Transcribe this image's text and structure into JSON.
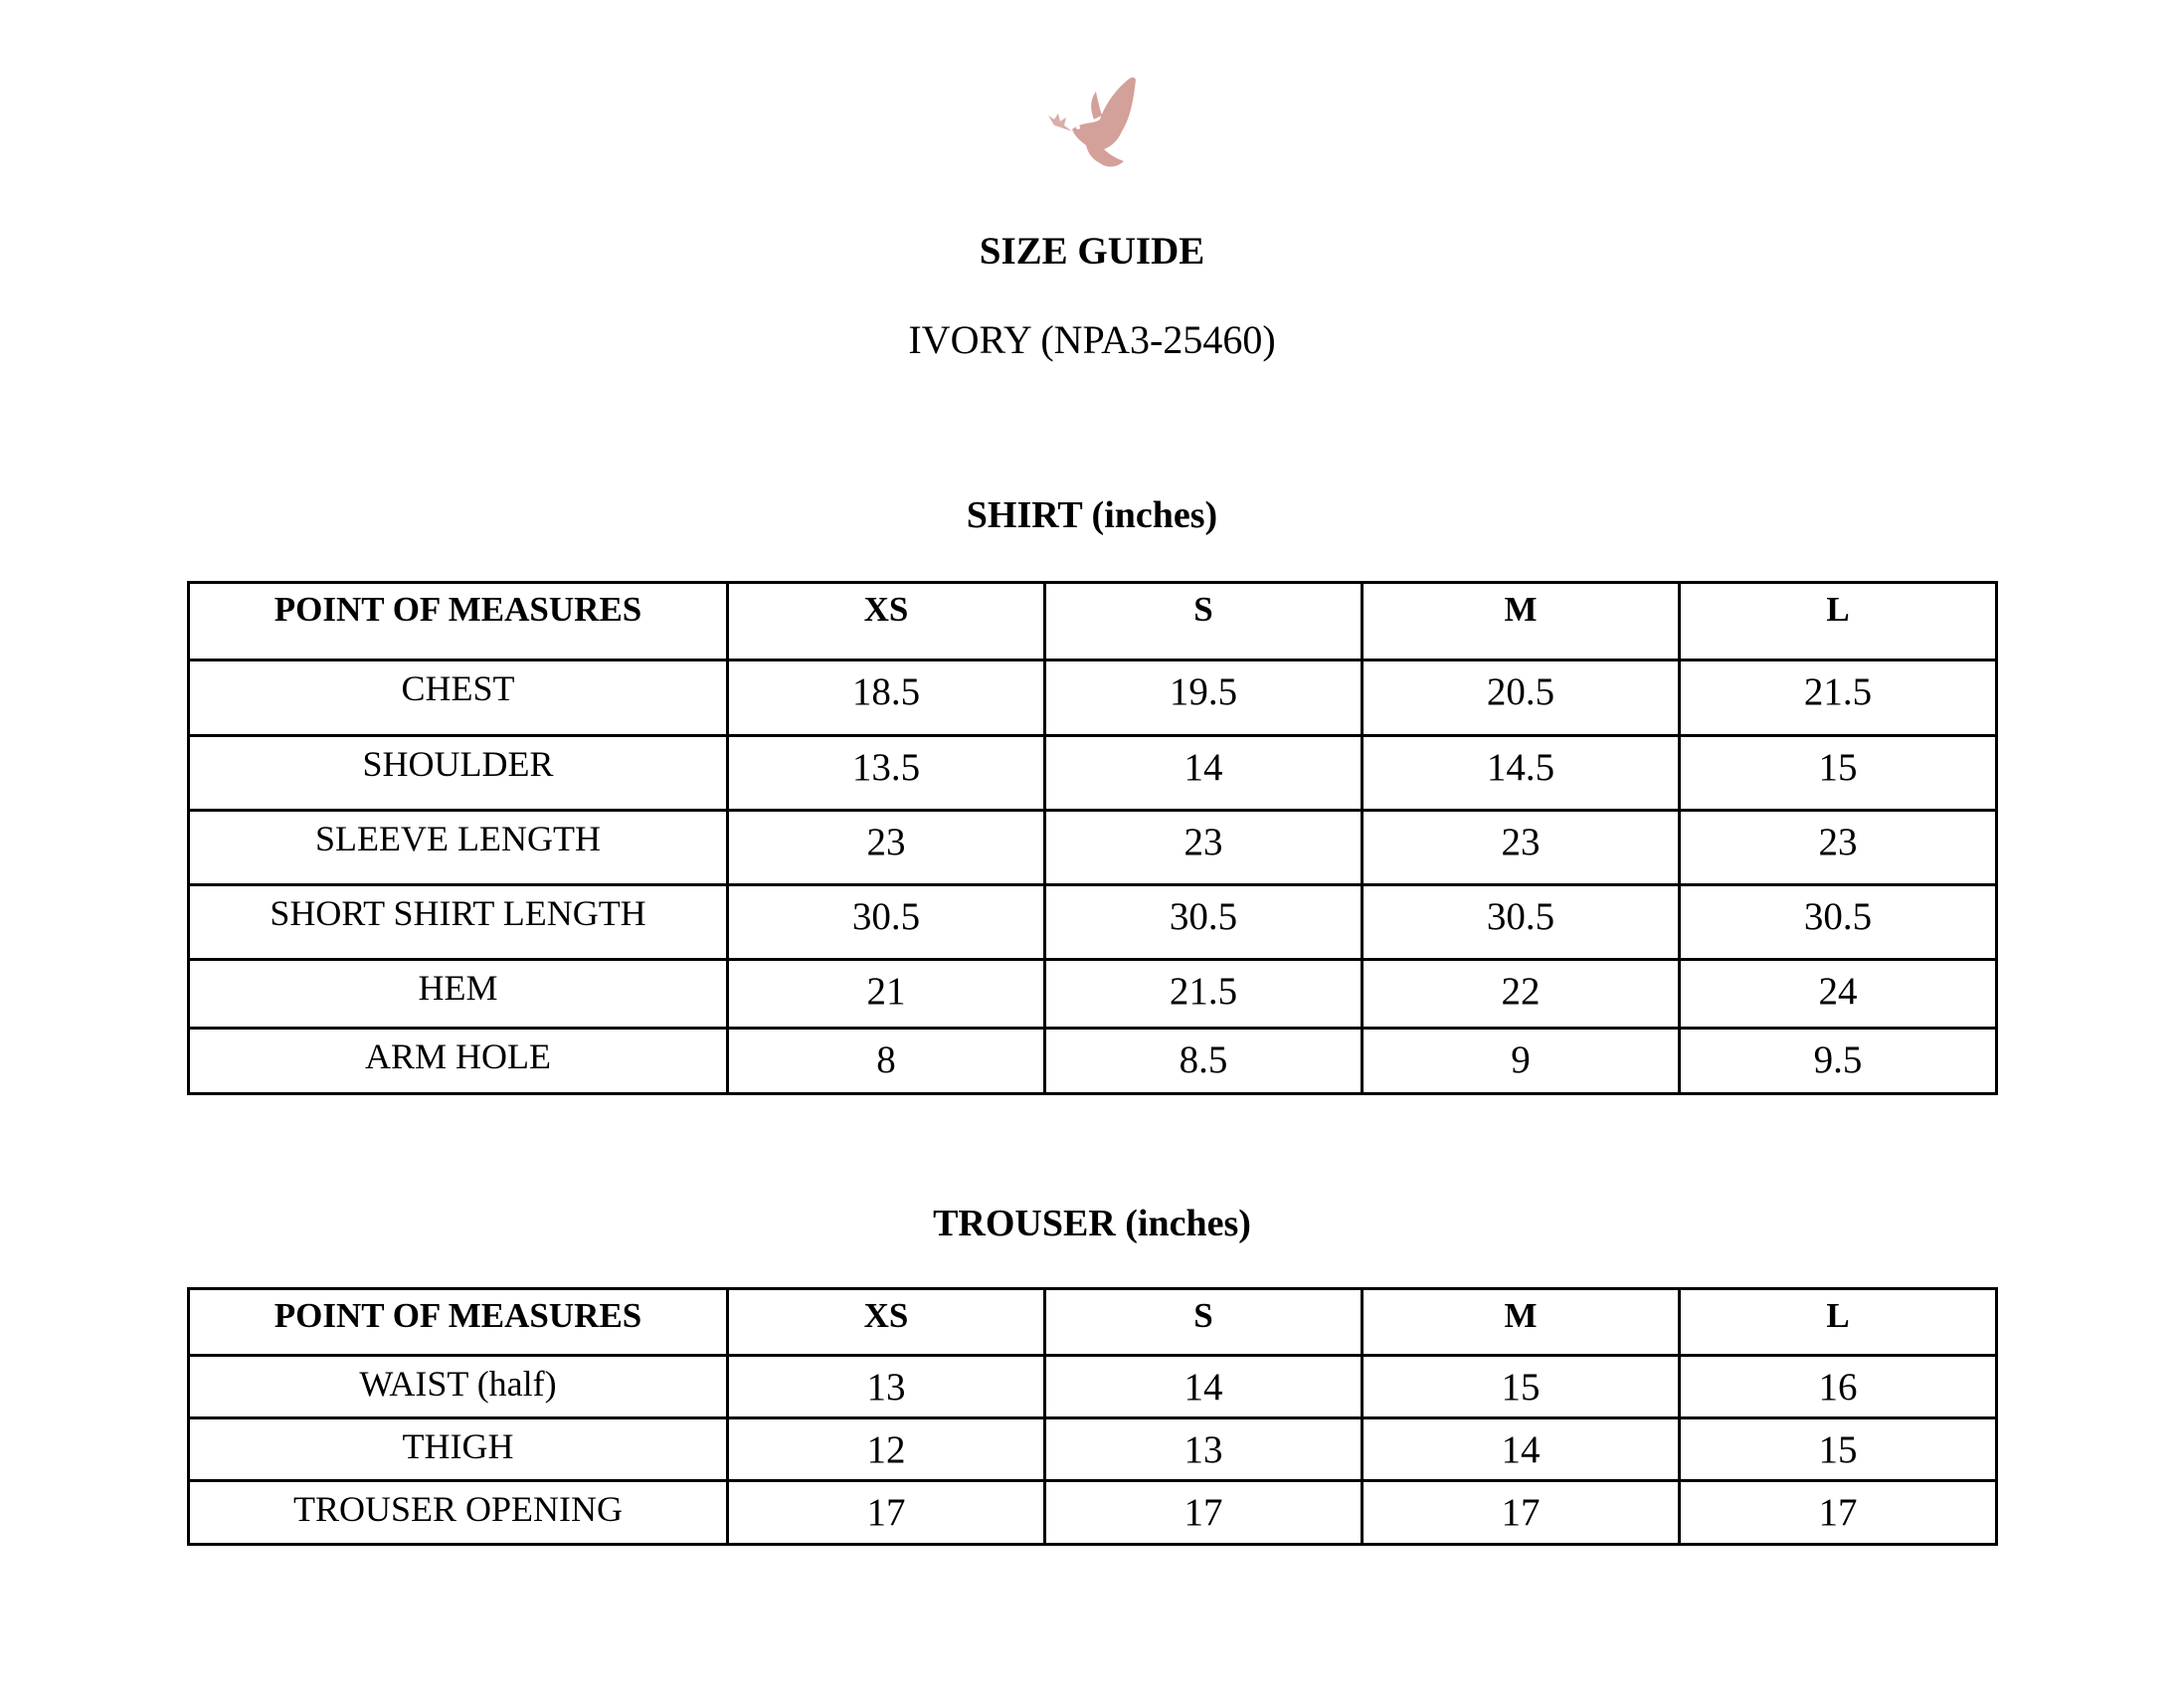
{
  "logo": {
    "icon": "dove-with-olive-branch",
    "color": "#d4a09a"
  },
  "title": "SIZE GUIDE",
  "subtitle": "IVORY (NPA3-25460)",
  "shirt": {
    "heading": "SHIRT (inches)",
    "headers": [
      "POINT OF MEASURES",
      "XS",
      "S",
      "M",
      "L"
    ],
    "rows": [
      [
        "CHEST",
        "18.5",
        "19.5",
        "20.5",
        "21.5"
      ],
      [
        "SHOULDER",
        "13.5",
        "14",
        "14.5",
        "15"
      ],
      [
        "SLEEVE LENGTH",
        "23",
        "23",
        "23",
        "23"
      ],
      [
        "SHORT SHIRT LENGTH",
        "30.5",
        "30.5",
        "30.5",
        "30.5"
      ],
      [
        "HEM",
        "21",
        "21.5",
        "22",
        "24"
      ],
      [
        "ARM HOLE",
        "8",
        "8.5",
        "9",
        "9.5"
      ]
    ]
  },
  "trouser": {
    "heading": "TROUSER (inches)",
    "headers": [
      "POINT OF MEASURES",
      "XS",
      "S",
      "M",
      "L"
    ],
    "rows": [
      [
        "WAIST (half)",
        "13",
        "14",
        "15",
        "16"
      ],
      [
        "THIGH",
        "12",
        "13",
        "14",
        "15"
      ],
      [
        "TROUSER OPENING",
        "17",
        "17",
        "17",
        "17"
      ]
    ]
  }
}
